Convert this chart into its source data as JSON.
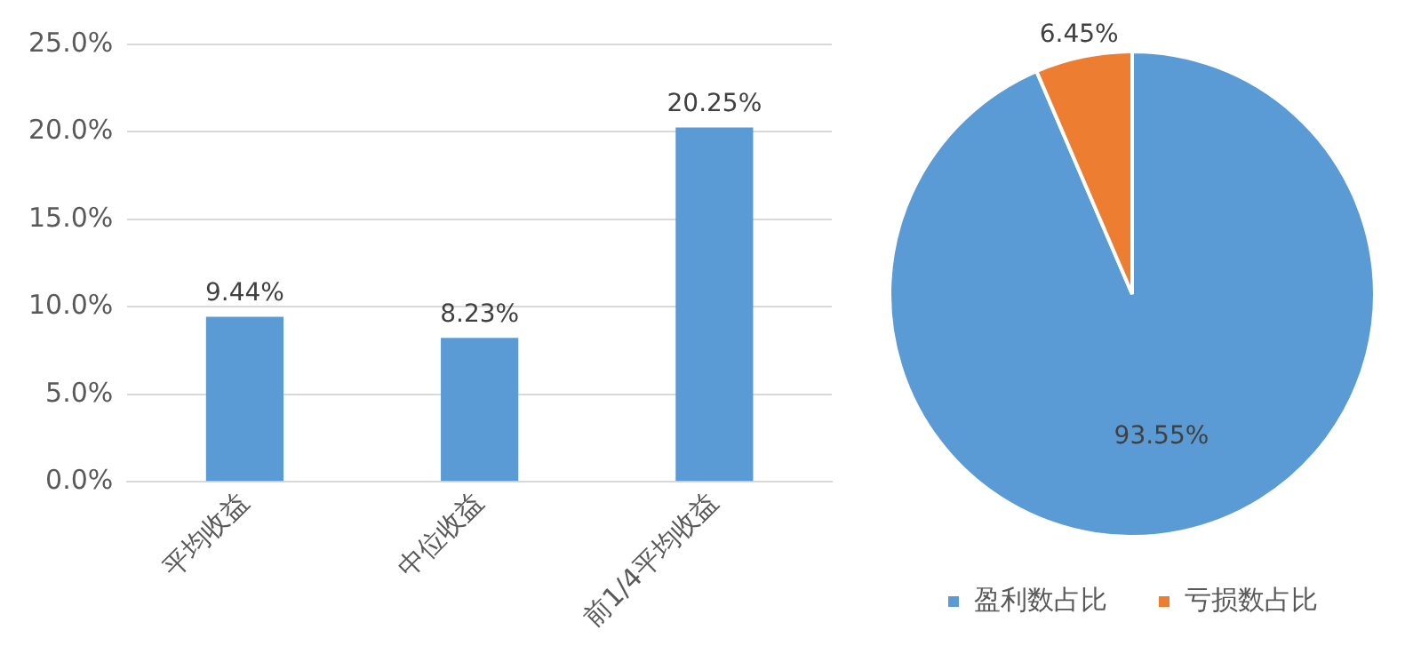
{
  "chart_data": [
    {
      "type": "bar",
      "categories": [
        "平均收益",
        "中位收益",
        "前1/4平均收益"
      ],
      "values": [
        9.44,
        8.23,
        20.25
      ],
      "color": "#5b9bd5",
      "ylim": [
        0,
        25
      ],
      "yticks": [
        {
          "value": 0,
          "label": "0.0%"
        },
        {
          "value": 5,
          "label": "5.0%"
        },
        {
          "value": 10,
          "label": "10.0%"
        },
        {
          "value": 15,
          "label": "15.0%"
        },
        {
          "value": 20,
          "label": "20.0%"
        },
        {
          "value": 25,
          "label": "25.0%"
        }
      ],
      "grid": "y",
      "value_labels": [
        "9.44%",
        "8.23%",
        "20.25%"
      ]
    },
    {
      "type": "pie",
      "categories": [
        "盈利数占比",
        "亏损数占比"
      ],
      "values": [
        93.55,
        6.45
      ],
      "colors": [
        "#5b9bd5",
        "#ed7d31"
      ],
      "legend": "bottom",
      "value_labels": [
        "93.55%",
        "6.45%"
      ]
    }
  ]
}
